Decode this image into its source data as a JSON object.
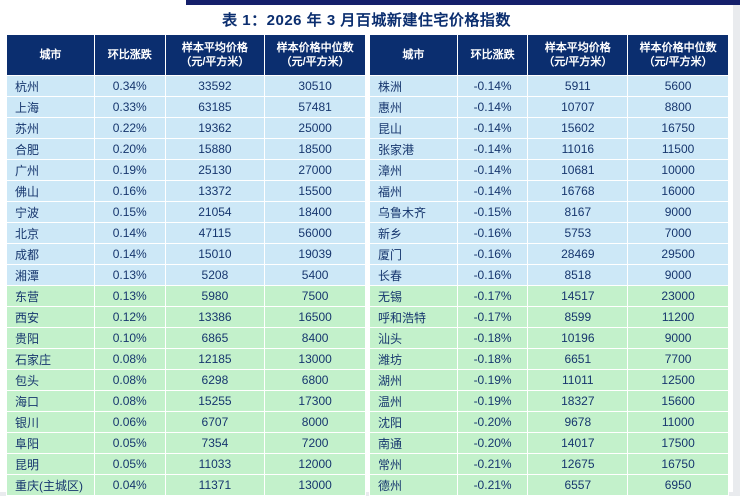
{
  "title": "表 1：2026 年 3 月百城新建住宅价格指数",
  "colors": {
    "accent_bar": "#15206b",
    "header_bg": "#0b2e6f",
    "row_blue": "#cde8f7",
    "row_green": "#c3f1cb",
    "text": "#16366e"
  },
  "header": {
    "city": "城市",
    "change": "环比涨跌",
    "avg_line1": "样本平均价格",
    "avg_line2": "（元/平方米）",
    "median_line1": "样本价格中位数",
    "median_line2": "（元/平方米）"
  },
  "left_rows": [
    {
      "city": "杭州",
      "change": "0.34%",
      "avg": "33592",
      "median": "30510",
      "band": "blue"
    },
    {
      "city": "上海",
      "change": "0.33%",
      "avg": "63185",
      "median": "57481",
      "band": "blue"
    },
    {
      "city": "苏州",
      "change": "0.22%",
      "avg": "19362",
      "median": "25000",
      "band": "blue"
    },
    {
      "city": "合肥",
      "change": "0.20%",
      "avg": "15880",
      "median": "18500",
      "band": "blue"
    },
    {
      "city": "广州",
      "change": "0.19%",
      "avg": "25130",
      "median": "27000",
      "band": "blue"
    },
    {
      "city": "佛山",
      "change": "0.16%",
      "avg": "13372",
      "median": "15500",
      "band": "blue"
    },
    {
      "city": "宁波",
      "change": "0.15%",
      "avg": "21054",
      "median": "18400",
      "band": "blue"
    },
    {
      "city": "北京",
      "change": "0.14%",
      "avg": "47115",
      "median": "56000",
      "band": "blue"
    },
    {
      "city": "成都",
      "change": "0.14%",
      "avg": "15010",
      "median": "19039",
      "band": "blue"
    },
    {
      "city": "湘潭",
      "change": "0.13%",
      "avg": "5208",
      "median": "5400",
      "band": "blue"
    },
    {
      "city": "东营",
      "change": "0.13%",
      "avg": "5980",
      "median": "7500",
      "band": "green"
    },
    {
      "city": "西安",
      "change": "0.12%",
      "avg": "13386",
      "median": "16500",
      "band": "green"
    },
    {
      "city": "贵阳",
      "change": "0.10%",
      "avg": "6865",
      "median": "8400",
      "band": "green"
    },
    {
      "city": "石家庄",
      "change": "0.08%",
      "avg": "12185",
      "median": "13000",
      "band": "green"
    },
    {
      "city": "包头",
      "change": "0.08%",
      "avg": "6298",
      "median": "6800",
      "band": "green"
    },
    {
      "city": "海口",
      "change": "0.08%",
      "avg": "15255",
      "median": "17300",
      "band": "green"
    },
    {
      "city": "银川",
      "change": "0.06%",
      "avg": "6707",
      "median": "8000",
      "band": "green"
    },
    {
      "city": "阜阳",
      "change": "0.05%",
      "avg": "7354",
      "median": "7200",
      "band": "green"
    },
    {
      "city": "昆明",
      "change": "0.05%",
      "avg": "11033",
      "median": "12000",
      "band": "green"
    },
    {
      "city": "重庆(主城区)",
      "change": "0.04%",
      "avg": "11371",
      "median": "13000",
      "band": "green"
    }
  ],
  "right_rows": [
    {
      "city": "株洲",
      "change": "-0.14%",
      "avg": "5911",
      "median": "5600",
      "band": "blue"
    },
    {
      "city": "惠州",
      "change": "-0.14%",
      "avg": "10707",
      "median": "8800",
      "band": "blue"
    },
    {
      "city": "昆山",
      "change": "-0.14%",
      "avg": "15602",
      "median": "16750",
      "band": "blue"
    },
    {
      "city": "张家港",
      "change": "-0.14%",
      "avg": "11016",
      "median": "11500",
      "band": "blue"
    },
    {
      "city": "漳州",
      "change": "-0.14%",
      "avg": "10681",
      "median": "10000",
      "band": "blue"
    },
    {
      "city": "福州",
      "change": "-0.14%",
      "avg": "16768",
      "median": "16000",
      "band": "blue"
    },
    {
      "city": "乌鲁木齐",
      "change": "-0.15%",
      "avg": "8167",
      "median": "9000",
      "band": "blue"
    },
    {
      "city": "新乡",
      "change": "-0.16%",
      "avg": "5753",
      "median": "7000",
      "band": "blue"
    },
    {
      "city": "厦门",
      "change": "-0.16%",
      "avg": "28469",
      "median": "29500",
      "band": "blue"
    },
    {
      "city": "长春",
      "change": "-0.16%",
      "avg": "8518",
      "median": "9000",
      "band": "blue"
    },
    {
      "city": "无锡",
      "change": "-0.17%",
      "avg": "14517",
      "median": "23000",
      "band": "green"
    },
    {
      "city": "呼和浩特",
      "change": "-0.17%",
      "avg": "8599",
      "median": "11200",
      "band": "green"
    },
    {
      "city": "汕头",
      "change": "-0.18%",
      "avg": "10196",
      "median": "9000",
      "band": "green"
    },
    {
      "city": "潍坊",
      "change": "-0.18%",
      "avg": "6651",
      "median": "7700",
      "band": "green"
    },
    {
      "city": "湖州",
      "change": "-0.19%",
      "avg": "11011",
      "median": "12500",
      "band": "green"
    },
    {
      "city": "温州",
      "change": "-0.19%",
      "avg": "18327",
      "median": "15600",
      "band": "green"
    },
    {
      "city": "沈阳",
      "change": "-0.20%",
      "avg": "9678",
      "median": "11000",
      "band": "green"
    },
    {
      "city": "南通",
      "change": "-0.20%",
      "avg": "14017",
      "median": "17500",
      "band": "green"
    },
    {
      "city": "常州",
      "change": "-0.21%",
      "avg": "12675",
      "median": "16750",
      "band": "green"
    },
    {
      "city": "德州",
      "change": "-0.21%",
      "avg": "6557",
      "median": "6950",
      "band": "green"
    }
  ]
}
